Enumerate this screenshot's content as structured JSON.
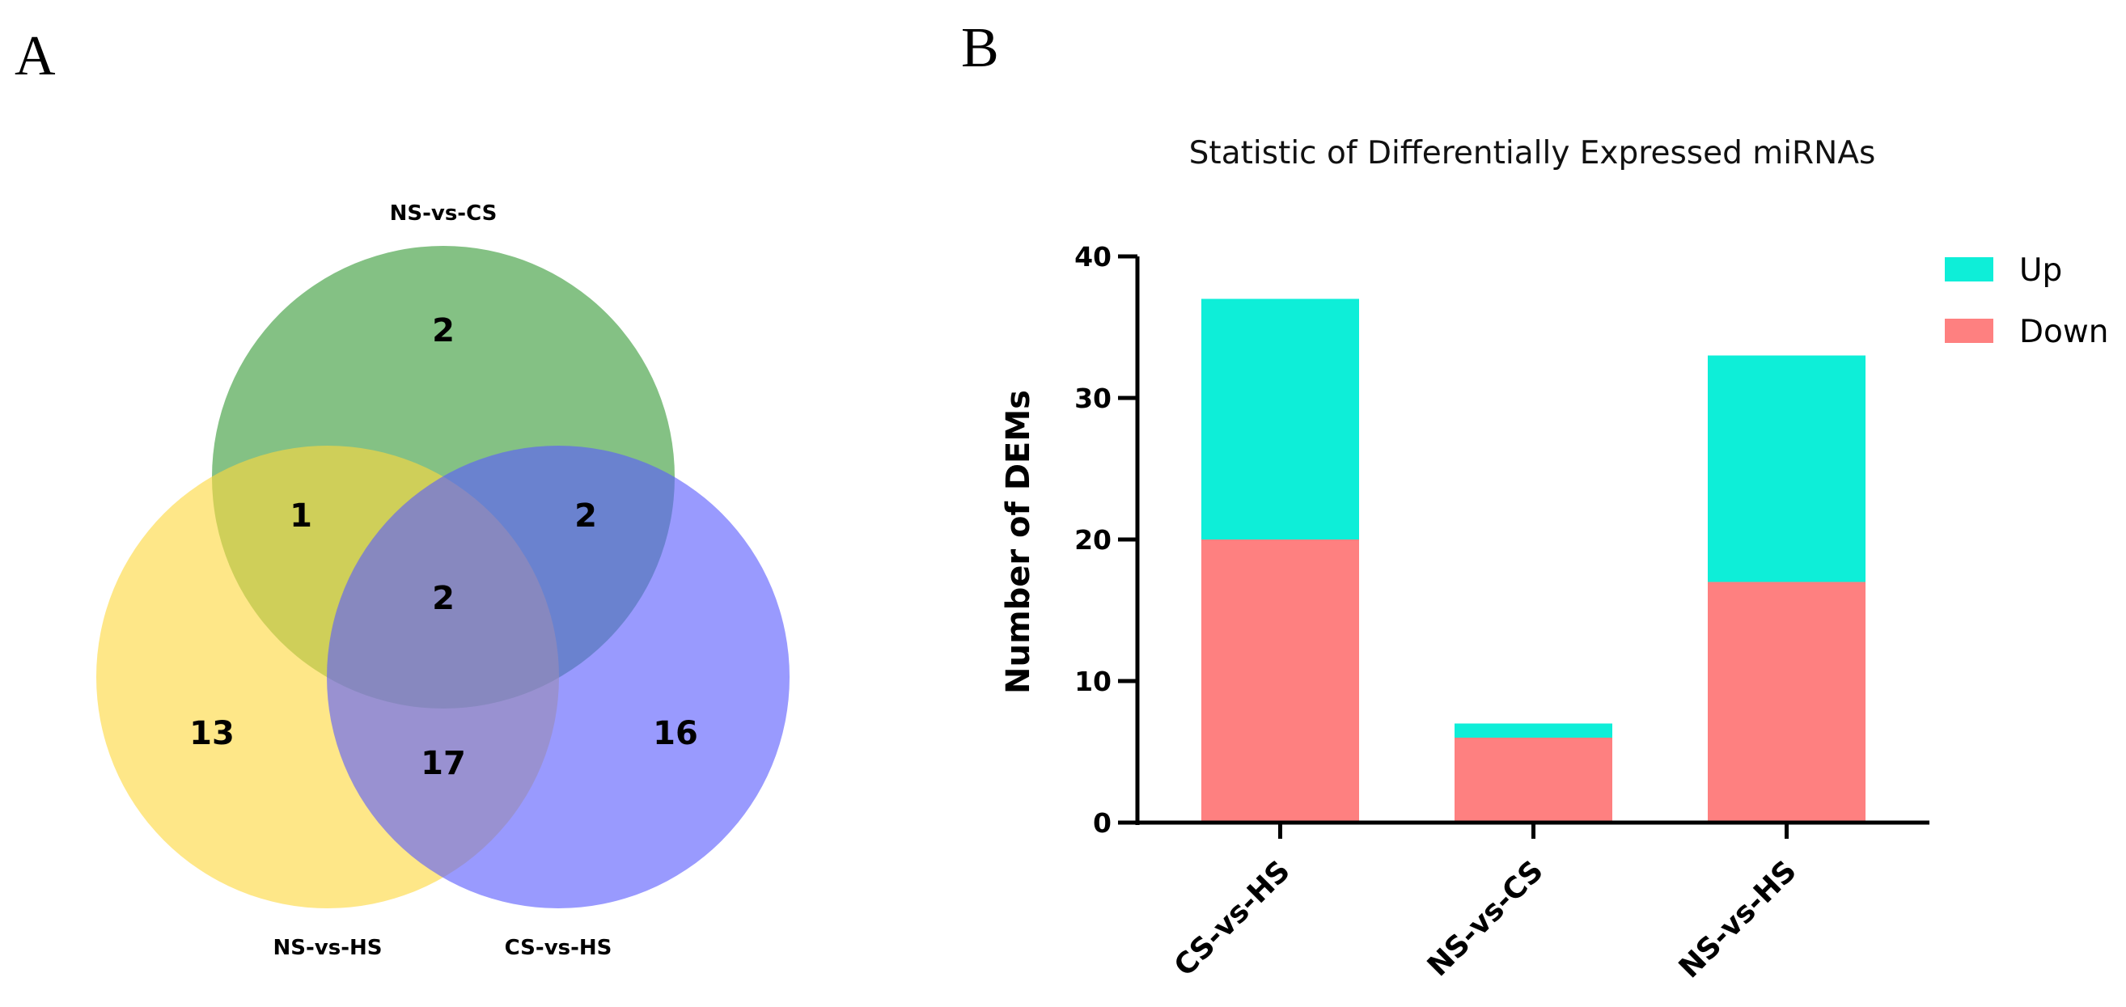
{
  "panels": {
    "a_letter": "A",
    "b_letter": "B"
  },
  "venn": {
    "sets": [
      {
        "label": "NS-vs-CS",
        "color": "#62b062"
      },
      {
        "label": "NS-vs-HS",
        "color": "#fed93f"
      },
      {
        "label": "CS-vs-HS",
        "color": "#5b5cfd"
      }
    ],
    "regions": {
      "ns_cs_only": "2",
      "ns_hs_only": "13",
      "cs_hs_only": "16",
      "ns_cs_and_ns_hs": "1",
      "ns_cs_and_cs_hs": "2",
      "ns_hs_and_cs_hs": "17",
      "all_three": "2"
    }
  },
  "chart_data": {
    "type": "bar",
    "stacked": true,
    "title": "Statistic of Differentially Expressed miRNAs",
    "xlabel": "",
    "ylabel": "Number of DEMs",
    "categories": [
      "CS-vs-HS",
      "NS-vs-CS",
      "NS-vs-HS"
    ],
    "series": [
      {
        "name": "Down",
        "color": "#fe8080",
        "values": [
          20,
          6,
          17
        ]
      },
      {
        "name": "Up",
        "color": "#0eeed8",
        "values": [
          17,
          1,
          16
        ]
      }
    ],
    "yticks": [
      "0",
      "10",
      "20",
      "30",
      "40"
    ],
    "ylim": [
      0,
      40
    ],
    "legend": {
      "position": "top-right",
      "entries": [
        "Up",
        "Down"
      ]
    },
    "grid": false
  }
}
